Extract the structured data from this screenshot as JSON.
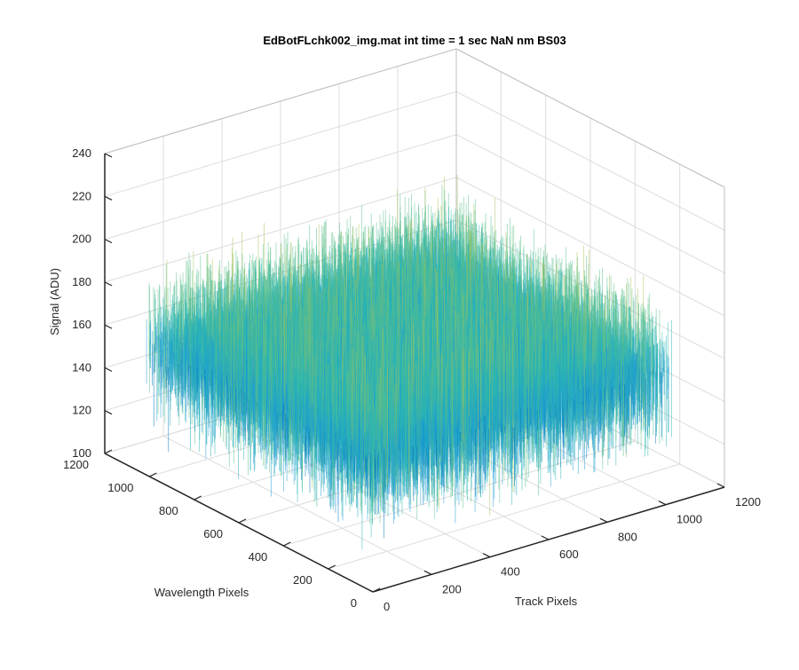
{
  "chart_data": {
    "type": "surface",
    "title": "EdBotFLchk002_img.mat int time = 1 sec  NaN nm BS03",
    "xlabel": "Track Pixels",
    "ylabel": "Wavelength Pixels",
    "zlabel": "Signal (ADU)",
    "xlim": [
      0,
      1200
    ],
    "ylim": [
      0,
      1200
    ],
    "zlim": [
      100,
      240
    ],
    "x_ticks": [
      "0",
      "200",
      "400",
      "600",
      "800",
      "1000",
      "1200"
    ],
    "y_ticks": [
      "0",
      "200",
      "400",
      "600",
      "800",
      "1000",
      "1200"
    ],
    "z_ticks": [
      "100",
      "120",
      "140",
      "160",
      "180",
      "200",
      "220",
      "240"
    ],
    "grid": true,
    "surface": {
      "x_extent": [
        1,
        1024
      ],
      "y_extent": [
        1,
        1024
      ],
      "mean_signal": 160,
      "noise_range": [
        110,
        225
      ]
    },
    "colormap": [
      "#0072bd",
      "#1e9fd1",
      "#2cb6b3",
      "#5cbf8a",
      "#a5c35a",
      "#e6c24a"
    ]
  }
}
